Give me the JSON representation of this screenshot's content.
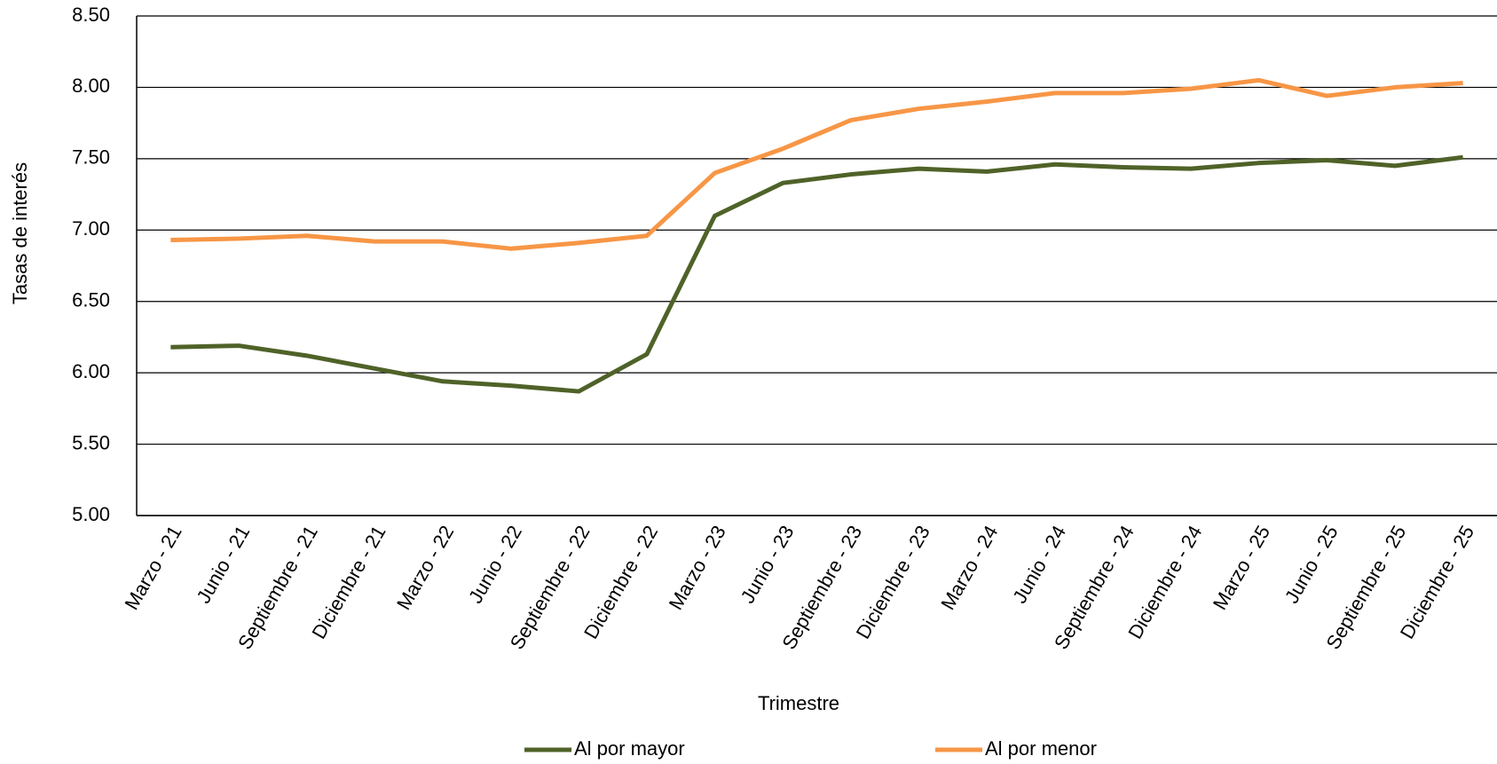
{
  "chart_data": {
    "type": "line",
    "y_label": "Tasas de interés",
    "x_label": "Trimestre",
    "categories": [
      "Marzo - 21",
      "Junio - 21",
      "Septiembre - 21",
      "Diciembre - 21",
      "Marzo - 22",
      "Junio - 22",
      "Septiembre - 22",
      "Diciembre - 22",
      "Marzo - 23",
      "Junio - 23",
      "Septiembre - 23",
      "Diciembre - 23",
      "Marzo - 24",
      "Junio - 24",
      "Septiembre - 24",
      "Diciembre - 24",
      "Marzo - 25",
      "Junio - 25",
      "Septiembre - 25",
      "Diciembre - 25"
    ],
    "series": [
      {
        "name": "Al por mayor",
        "color": "#4f6228",
        "values": [
          6.18,
          6.19,
          6.12,
          6.03,
          5.94,
          5.91,
          5.87,
          6.13,
          7.1,
          7.33,
          7.39,
          7.43,
          7.41,
          7.46,
          7.44,
          7.43,
          7.47,
          7.49,
          7.45,
          7.51
        ]
      },
      {
        "name": "Al por menor",
        "color": "#f79646",
        "values": [
          6.93,
          6.94,
          6.96,
          6.92,
          6.92,
          6.87,
          6.91,
          6.96,
          7.4,
          7.57,
          7.77,
          7.85,
          7.9,
          7.96,
          7.96,
          7.99,
          8.05,
          7.94,
          8.0,
          8.03
        ]
      }
    ],
    "ylim": [
      5,
      8.5
    ],
    "yticks": [
      {
        "value": 5,
        "label": "5.00"
      },
      {
        "value": 5.5,
        "label": "5.50"
      },
      {
        "value": 6,
        "label": "6.00"
      },
      {
        "value": 6.5,
        "label": "6.50"
      },
      {
        "value": 7,
        "label": "7.00"
      },
      {
        "value": 7.5,
        "label": "7.50"
      },
      {
        "value": 8,
        "label": "8.00"
      },
      {
        "value": 8.5,
        "label": "8.50"
      }
    ],
    "grid": true,
    "legend": "bottom"
  }
}
